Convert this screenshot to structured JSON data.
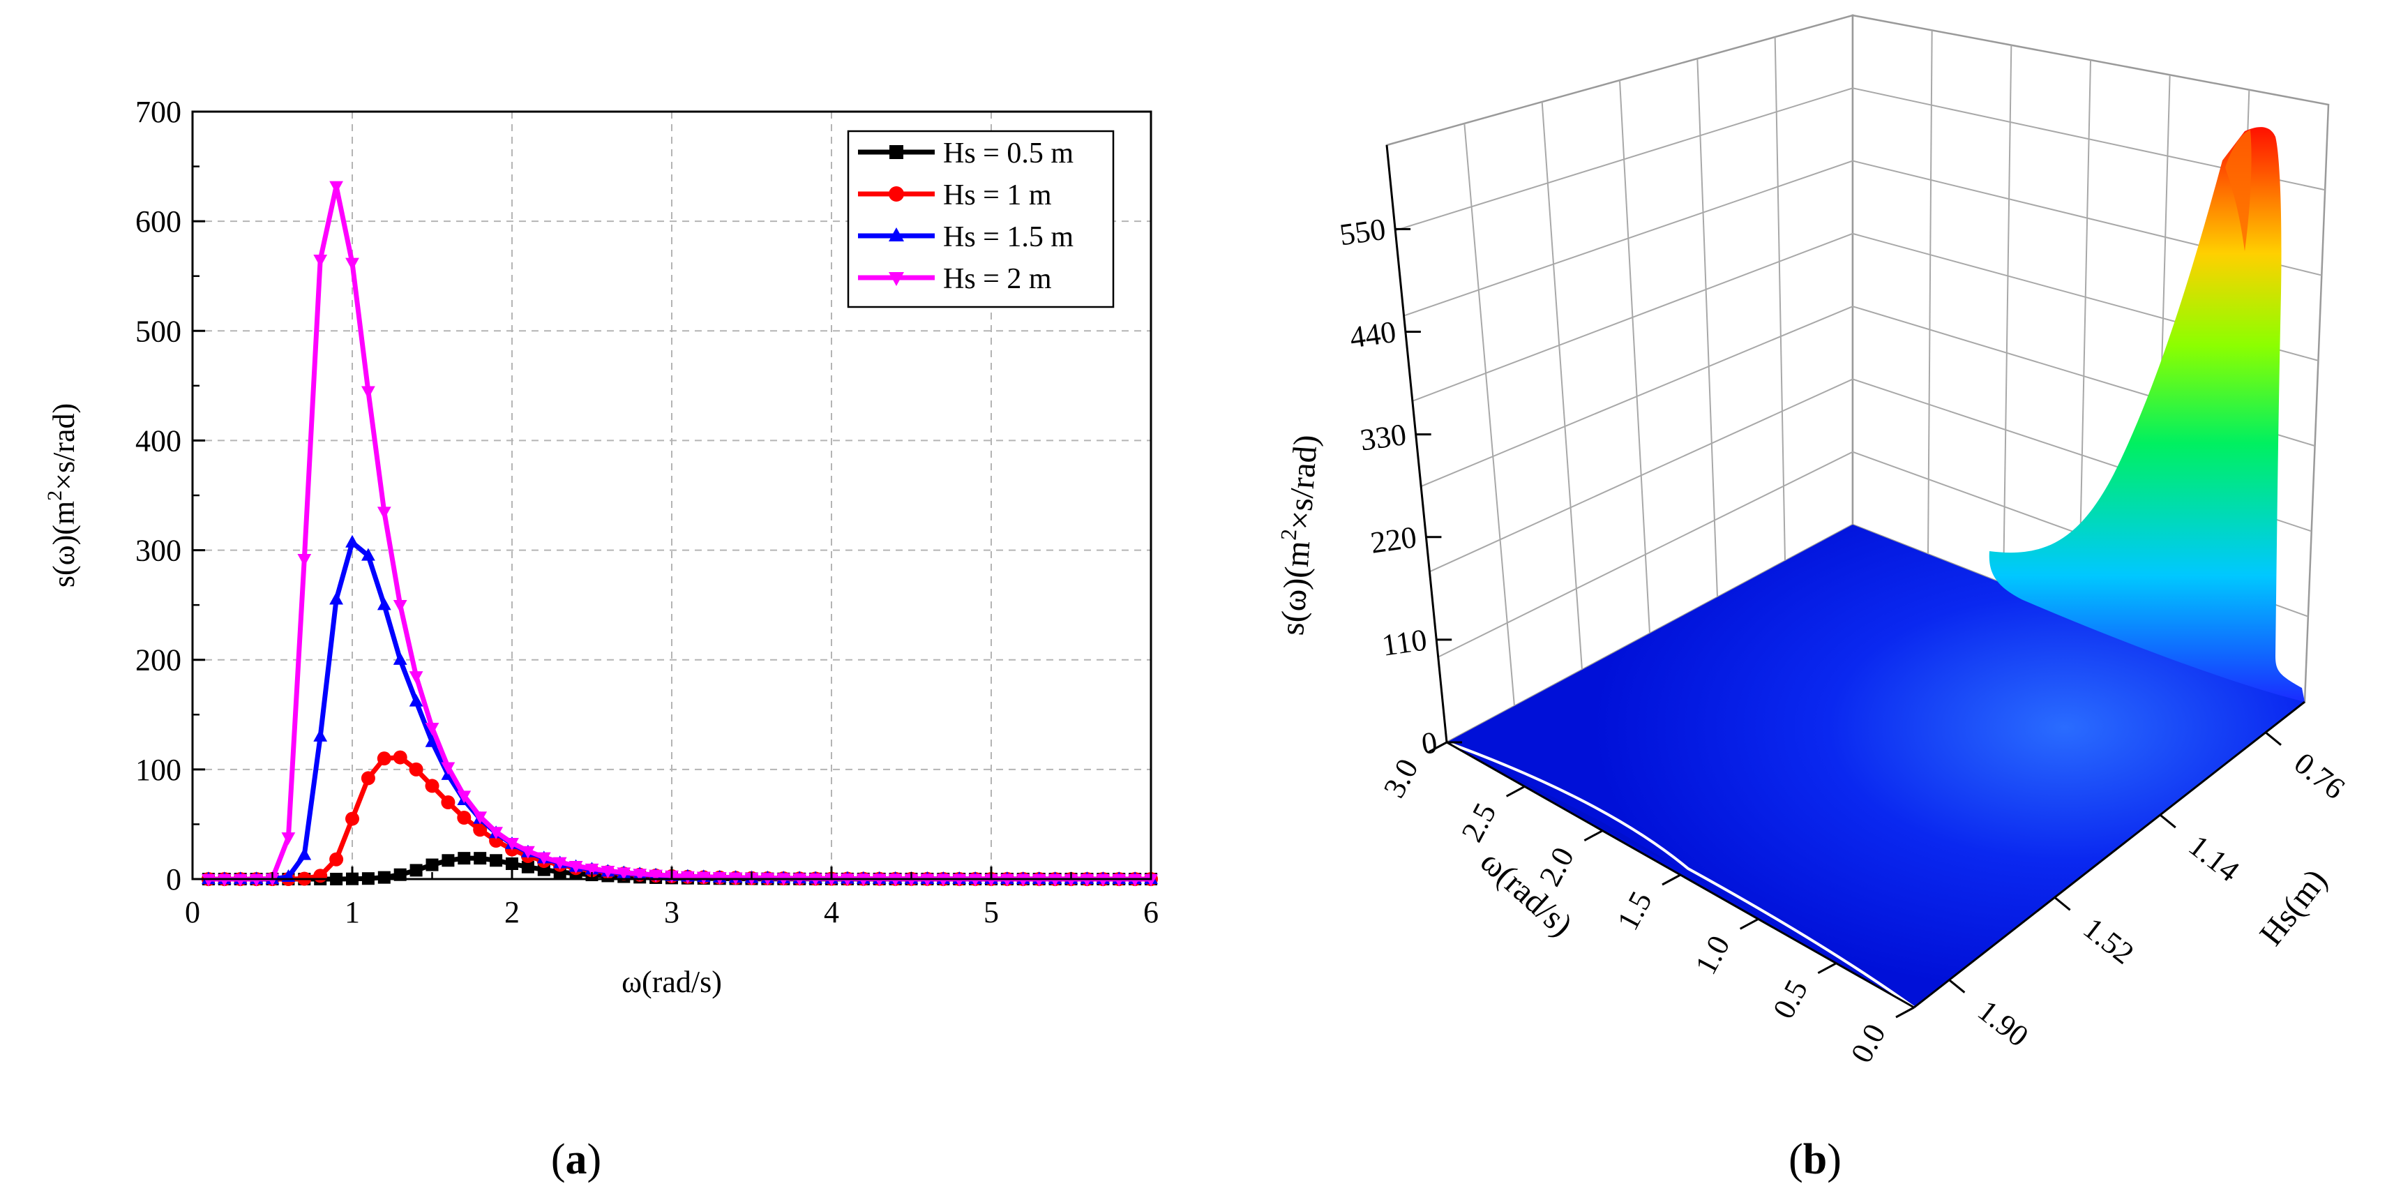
{
  "chart_data": [
    {
      "type": "line",
      "panel_label": "a",
      "title": "",
      "xlabel": "ω(rad/s)",
      "ylabel": "s(ω)(m²×s/rad)",
      "ylabel_parts": {
        "pre": "s(ω)(m",
        "sup": "2",
        "post": "×s/rad)"
      },
      "xlim": [
        0,
        6
      ],
      "ylim": [
        0,
        700
      ],
      "xticks": [
        0,
        1,
        2,
        3,
        4,
        5,
        6
      ],
      "yticks": [
        0,
        100,
        200,
        300,
        400,
        500,
        600,
        700
      ],
      "grid": true,
      "legend_position": "top-right",
      "x": [
        0.1,
        0.2,
        0.3,
        0.4,
        0.5,
        0.6,
        0.7,
        0.8,
        0.9,
        1.0,
        1.1,
        1.2,
        1.3,
        1.4,
        1.5,
        1.6,
        1.7,
        1.8,
        1.9,
        2.0,
        2.1,
        2.2,
        2.3,
        2.4,
        2.5,
        2.6,
        2.7,
        2.8,
        2.9,
        3.0,
        3.1,
        3.2,
        3.3,
        3.4,
        3.5,
        3.6,
        3.7,
        3.8,
        3.9,
        4.0,
        4.1,
        4.2,
        4.3,
        4.4,
        4.5,
        4.6,
        4.7,
        4.8,
        4.9,
        5.0,
        5.1,
        5.2,
        5.3,
        5.4,
        5.5,
        5.6,
        5.7,
        5.8,
        5.9,
        6.0
      ],
      "series": [
        {
          "name": "Hs = 0.5 m",
          "color": "#000000",
          "marker": "square",
          "values": [
            0,
            0,
            0,
            0,
            0,
            0,
            0,
            0,
            0,
            0.2,
            0.5,
            1.5,
            4,
            8,
            13,
            17,
            19,
            19,
            17,
            14,
            11,
            8.5,
            6.5,
            5,
            3.8,
            2.9,
            2.2,
            1.7,
            1.3,
            1,
            0.8,
            0.6,
            0.45,
            0.35,
            0.28,
            0.22,
            0.17,
            0.14,
            0.11,
            0.09,
            0.07,
            0.06,
            0.05,
            0.04,
            0.03,
            0.03,
            0.02,
            0.02,
            0.02,
            0.01,
            0.01,
            0.01,
            0.01,
            0.01,
            0.01,
            0,
            0,
            0,
            0,
            0
          ]
        },
        {
          "name": "Hs = 1 m",
          "color": "#ff0000",
          "marker": "circle",
          "values": [
            0,
            0,
            0,
            0,
            0,
            0,
            0.3,
            3,
            18,
            55,
            92,
            110,
            111,
            100,
            85,
            70,
            56,
            45,
            35,
            27,
            21,
            16.5,
            13,
            10,
            8,
            6.3,
            5,
            4,
            3.2,
            2.6,
            2.1,
            1.7,
            1.4,
            1.1,
            0.9,
            0.75,
            0.62,
            0.51,
            0.42,
            0.35,
            0.29,
            0.24,
            0.2,
            0.17,
            0.14,
            0.12,
            0.1,
            0.09,
            0.07,
            0.06,
            0.05,
            0.05,
            0.04,
            0.03,
            0.03,
            0.03,
            0.02,
            0.02,
            0.02,
            0.02
          ]
        },
        {
          "name": "Hs = 1.5 m",
          "color": "#0000ff",
          "marker": "triangle-up",
          "values": [
            0,
            0,
            0,
            0,
            0,
            2,
            22,
            130,
            255,
            307,
            295,
            250,
            200,
            162,
            125,
            95,
            72,
            55,
            42,
            32,
            24.5,
            19,
            14.5,
            11.2,
            8.8,
            6.9,
            5.5,
            4.4,
            3.5,
            2.8,
            2.3,
            1.9,
            1.5,
            1.25,
            1.03,
            0.85,
            0.7,
            0.58,
            0.48,
            0.4,
            0.33,
            0.28,
            0.23,
            0.2,
            0.17,
            0.14,
            0.12,
            0.1,
            0.09,
            0.08,
            0.07,
            0.06,
            0.05,
            0.04,
            0.04,
            0.03,
            0.03,
            0.03,
            0.02,
            0.02
          ]
        },
        {
          "name": "Hs = 2 m",
          "color": "#ff00ff",
          "marker": "triangle-down",
          "values": [
            0,
            0,
            0,
            0,
            0.5,
            38,
            292,
            565,
            632,
            562,
            445,
            335,
            250,
            185,
            138,
            102,
            76,
            57,
            43,
            33,
            25.5,
            19.8,
            15.4,
            12,
            9.5,
            7.5,
            6,
            4.8,
            3.9,
            3.2,
            2.6,
            2.1,
            1.75,
            1.45,
            1.2,
            1,
            0.83,
            0.7,
            0.59,
            0.5,
            0.42,
            0.36,
            0.31,
            0.26,
            0.22,
            0.19,
            0.16,
            0.14,
            0.12,
            0.1,
            0.09,
            0.08,
            0.07,
            0.06,
            0.05,
            0.05,
            0.04,
            0.04,
            0.03,
            0.03
          ]
        }
      ]
    },
    {
      "type": "surface3d",
      "panel_label": "b",
      "title": "",
      "xlabel": "ω(rad/s)",
      "ylabel": "Hs(m)",
      "zlabel": "s(ω)(m²×s/rad)",
      "zlabel_parts": {
        "pre": "s(ω)(m",
        "sup": "2",
        "post": "×s/rad)"
      },
      "omega_ticks": [
        "0.0",
        "0.5",
        "1.0",
        "1.5",
        "2.0",
        "2.5",
        "3.0"
      ],
      "hs_ticks": [
        "0.76",
        "1.14",
        "1.52",
        "1.90"
      ],
      "z_ticks": [
        "0",
        "110",
        "220",
        "330",
        "440",
        "550"
      ],
      "omega_range": [
        0,
        3
      ],
      "hs_range": [
        0.76,
        1.9
      ],
      "z_range": [
        0,
        640
      ],
      "peak": {
        "omega": 0.9,
        "hs": 0.76,
        "value": 632
      },
      "colormap": [
        "#0000ff",
        "#00ffff",
        "#00ff00",
        "#ffff00",
        "#ff0000"
      ]
    }
  ]
}
